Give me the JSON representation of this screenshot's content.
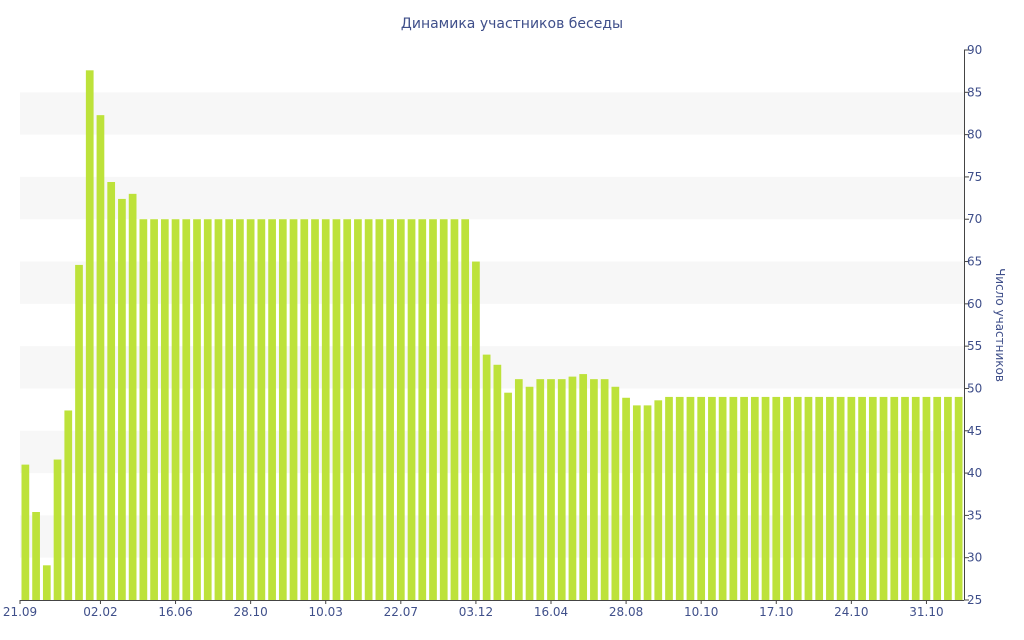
{
  "chart_data": {
    "type": "bar",
    "title": "Динамика участников беседы",
    "ylabel": "Число участников",
    "xlabel": "",
    "ylim": [
      25,
      90
    ],
    "yticks": [
      25,
      30,
      35,
      40,
      45,
      50,
      55,
      60,
      65,
      70,
      75,
      80,
      85,
      90
    ],
    "y_axis_side": "right",
    "grid": "alternating horizontal bands",
    "x_tick_labels": [
      {
        "index": 0,
        "label": "21.09"
      },
      {
        "index": 7,
        "label": "02.02"
      },
      {
        "index": 14,
        "label": "16.06"
      },
      {
        "index": 21,
        "label": "28.10"
      },
      {
        "index": 28,
        "label": "10.03"
      },
      {
        "index": 35,
        "label": "22.07"
      },
      {
        "index": 42,
        "label": "03.12"
      },
      {
        "index": 49,
        "label": "16.04"
      },
      {
        "index": 56,
        "label": "28.08"
      },
      {
        "index": 63,
        "label": "10.10"
      },
      {
        "index": 70,
        "label": "17.10"
      },
      {
        "index": 77,
        "label": "24.10"
      },
      {
        "index": 84,
        "label": "31.10"
      }
    ],
    "values": [
      41,
      35.4,
      29.1,
      41.6,
      47.4,
      64.6,
      87.6,
      82.3,
      74.4,
      72.4,
      73,
      70,
      70,
      70,
      70,
      70,
      70,
      70,
      70,
      70,
      70,
      70,
      70,
      70,
      70,
      70,
      70,
      70,
      70,
      70,
      70,
      70,
      70,
      70,
      70,
      70,
      70,
      70,
      70,
      70,
      70,
      70,
      65,
      54,
      52.8,
      49.5,
      51.1,
      50.2,
      51.1,
      51.1,
      51.1,
      51.4,
      51.7,
      51.1,
      51.1,
      50.2,
      48.9,
      48,
      48,
      48.6,
      49,
      49,
      49,
      49,
      49,
      49,
      49,
      49,
      49,
      49,
      49,
      49,
      49,
      49,
      49,
      49,
      49,
      49,
      49,
      49,
      49,
      49,
      49,
      49,
      49,
      49,
      49,
      49
    ],
    "bar_color": "#bde23a",
    "band_color": "#f7f7f7",
    "text_color": "#3f4f8a"
  }
}
